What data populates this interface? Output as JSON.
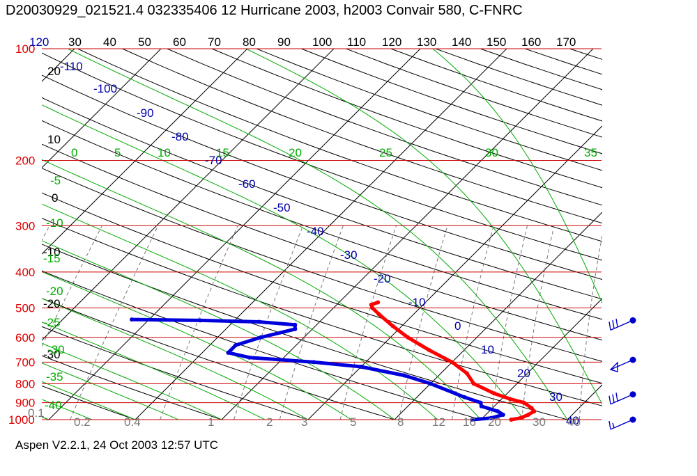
{
  "title": "D20030929_021521.4 032335406 12 Hurricane 2003, h2003 Convair 580, C-FNRC",
  "footer": "Aspen V2.2.1, 24 Oct 2003  12:57 UTC",
  "colors": {
    "isobar": "#cc0000",
    "pressure_label": "#dd0000",
    "isotherm_label": "#000000",
    "dry_adiabat_label": "#0000aa",
    "moist_adiabat": "#00aa00",
    "mixing_ratio": "#777777",
    "temperature_trace": "#ff0000",
    "dewpoint_trace": "#0000dd",
    "wind_barb": "#0000cc"
  },
  "chart_data": {
    "type": "skew-t log-p",
    "pressure_levels": [
      "100",
      "200",
      "300",
      "400",
      "500",
      "600",
      "700",
      "800",
      "900",
      "1000"
    ],
    "top_temperature_labels": [
      "120",
      "30",
      "40",
      "50",
      "60",
      "70",
      "80",
      "90",
      "100",
      "110",
      "120",
      "130",
      "140",
      "150",
      "160",
      "170"
    ],
    "left_temperature_labels": [
      "20",
      "10",
      "0",
      "-10",
      "-20",
      "-30"
    ],
    "dry_adiabat_labels": [
      "-110",
      "-100",
      "-90",
      "-80",
      "-70",
      "-60",
      "-50",
      "-40",
      "-30",
      "-20",
      "-10",
      "0",
      "10",
      "20",
      "30",
      "40"
    ],
    "moist_adiabat_labels": [
      "0",
      "5",
      "10",
      "15",
      "20",
      "25",
      "30",
      "35",
      "-5",
      "-10",
      "-15",
      "-20",
      "-25",
      "-30",
      "-35",
      "-40"
    ],
    "mixing_ratio_labels": [
      "0.1",
      "0.2",
      "0.4",
      "1",
      "2",
      "3",
      "5",
      "8",
      "12",
      "16",
      "20",
      "30",
      "40"
    ],
    "temperature_profile": [
      {
        "p": 1000,
        "t": 23.5
      },
      {
        "p": 990,
        "t": 24.4
      },
      {
        "p": 970,
        "t": 24.9
      },
      {
        "p": 950,
        "t": 25.2
      },
      {
        "p": 930,
        "t": 24.5
      },
      {
        "p": 900,
        "t": 23.0
      },
      {
        "p": 880,
        "t": 21.0
      },
      {
        "p": 850,
        "t": 18.5
      },
      {
        "p": 800,
        "t": 15.0
      },
      {
        "p": 750,
        "t": 13.0
      },
      {
        "p": 700,
        "t": 10.0
      },
      {
        "p": 650,
        "t": 6.0
      },
      {
        "p": 600,
        "t": 2.0
      },
      {
        "p": 560,
        "t": -1.0
      },
      {
        "p": 520,
        "t": -4.0
      },
      {
        "p": 500,
        "t": -5.5
      },
      {
        "p": 490,
        "t": -6.0
      },
      {
        "p": 483,
        "t": -5.5
      }
    ],
    "dewpoint_profile": [
      {
        "p": 1000,
        "td": 19.0
      },
      {
        "p": 990,
        "td": 21.0
      },
      {
        "p": 970,
        "td": 22.0
      },
      {
        "p": 950,
        "td": 21.0
      },
      {
        "p": 920,
        "td": 18.5
      },
      {
        "p": 900,
        "td": 18.0
      },
      {
        "p": 870,
        "td": 15.5
      },
      {
        "p": 850,
        "td": 14.0
      },
      {
        "p": 800,
        "td": 10.0
      },
      {
        "p": 760,
        "td": 6.0
      },
      {
        "p": 720,
        "td": 0.0
      },
      {
        "p": 700,
        "td": -6.0
      },
      {
        "p": 680,
        "td": -14.0
      },
      {
        "p": 660,
        "td": -17.0
      },
      {
        "p": 630,
        "td": -17.0
      },
      {
        "p": 600,
        "td": -15.0
      },
      {
        "p": 570,
        "td": -12.0
      },
      {
        "p": 555,
        "td": -12.5
      },
      {
        "p": 545,
        "td": -17.0
      },
      {
        "p": 540,
        "td": -24.0
      },
      {
        "p": 537,
        "td": -32.0
      }
    ],
    "wind_barbs": [
      {
        "p": 540,
        "label": "ΞΞ",
        "shape": "three-full-barbs"
      },
      {
        "p": 690,
        "label": "pennant",
        "shape": "pennant"
      },
      {
        "p": 855,
        "label": "ΞΞΞ",
        "shape": "three-full-barbs"
      },
      {
        "p": 1000,
        "label": "F",
        "shape": "one-full-one-half"
      }
    ]
  }
}
